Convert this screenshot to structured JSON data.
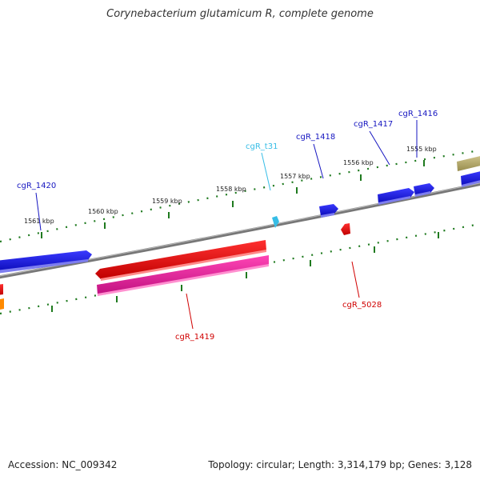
{
  "title": "Corynebacterium glutamicum R, complete genome",
  "footer": {
    "accession": "Accession: NC_009342",
    "info": "Topology: circular; Length: 3,314,179 bp; Genes: 3,128"
  },
  "scale_labels": [
    "1555 kbp",
    "1556 kbp",
    "1557 kbp",
    "1558 kbp",
    "1559 kbp",
    "1560 kbp",
    "1561 kbp"
  ],
  "gene_labels": {
    "cgR_1416": "cgR_1416",
    "cgR_1417": "cgR_1417",
    "cgR_1418": "cgR_1418",
    "cgR_t31": "cgR_t31",
    "cgR_1420": "cgR_1420",
    "cgR_1419": "cgR_1419",
    "cgR_5028": "cgR_5028"
  },
  "colors": {
    "forward_gene": "#1515e0",
    "reverse_gene": "#e80000",
    "pink_feature": "#e8209a",
    "trna": "#36bde6",
    "olive_feature": "#b5aa6a",
    "orange_feature": "#ff8a00",
    "backbone": "#808080",
    "tick": "#1f7a1f"
  }
}
